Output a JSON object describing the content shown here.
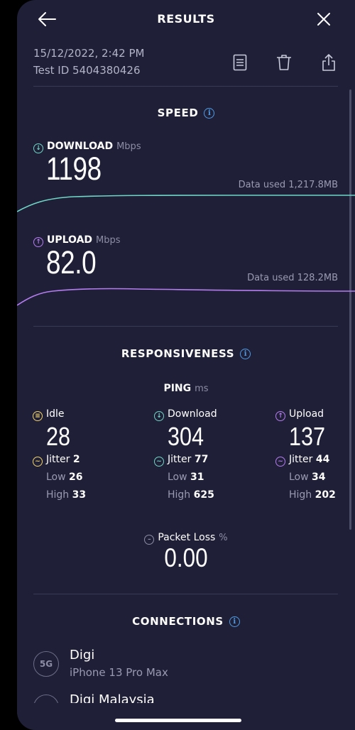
{
  "header": {
    "title": "RESULTS"
  },
  "meta": {
    "datetime": "15/12/2022, 2:42 PM",
    "test_id": "Test ID 5404380426"
  },
  "speed": {
    "title": "SPEED",
    "download": {
      "label": "DOWNLOAD",
      "unit": "Mbps",
      "value": "1198",
      "data_used": "Data used 1,217.8MB"
    },
    "upload": {
      "label": "UPLOAD",
      "unit": "Mbps",
      "value": "82.0",
      "data_used": "Data used 128.2MB"
    }
  },
  "responsiveness": {
    "title": "RESPONSIVENESS",
    "ping_label": "PING",
    "ping_unit": "ms",
    "idle": {
      "label": "Idle",
      "value": "28",
      "jitter_label": "Jitter",
      "jitter": "2",
      "low_label": "Low",
      "low": "26",
      "high_label": "High",
      "high": "33"
    },
    "download": {
      "label": "Download",
      "value": "304",
      "jitter_label": "Jitter",
      "jitter": "77",
      "low_label": "Low",
      "low": "31",
      "high_label": "High",
      "high": "625"
    },
    "upload": {
      "label": "Upload",
      "value": "137",
      "jitter_label": "Jitter",
      "jitter": "44",
      "low_label": "Low",
      "low": "34",
      "high_label": "High",
      "high": "202"
    },
    "packet_loss": {
      "label": "Packet Loss",
      "unit": "%",
      "value": "0.00"
    }
  },
  "connections": {
    "title": "CONNECTIONS",
    "items": [
      {
        "icon_text": "5G",
        "name": "Digi",
        "device": "iPhone 13 Pro Max"
      },
      {
        "name": "Digi Malaysia"
      }
    ]
  },
  "colors": {
    "background": "#1f1f37",
    "download": "#6fd6c8",
    "upload": "#b57df0",
    "idle": "#f2d36b",
    "info": "#4e9ce6"
  },
  "icons": [
    "back-arrow-icon",
    "close-icon",
    "notes-icon",
    "trash-icon",
    "share-icon",
    "info-icon",
    "download-arrow-icon",
    "upload-arrow-icon",
    "idle-icon",
    "jitter-icon",
    "packet-loss-icon",
    "5g-icon"
  ]
}
